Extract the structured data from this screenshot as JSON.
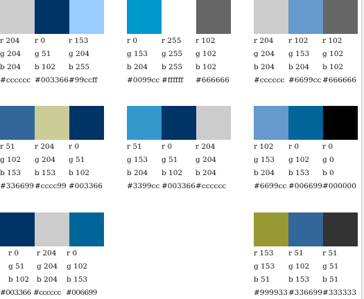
{
  "groups": [
    {
      "name": "row1-col1",
      "swatches": [
        {
          "r": "r 204",
          "g": "g 204",
          "b": "b 204",
          "hex": "#cccccc",
          "color": "#cccccc"
        },
        {
          "r": "r 0",
          "g": "g 51",
          "b": "b 102",
          "hex": "#003366",
          "color": "#003366"
        },
        {
          "r": "r 153",
          "g": "g 204",
          "b": "b 255",
          "hex": "#99ccff",
          "color": "#99ccff"
        }
      ]
    },
    {
      "name": "row1-col2",
      "swatches": [
        {
          "r": "r 0",
          "g": "g 153",
          "b": "b 204",
          "hex": "#0099cc",
          "color": "#0099cc"
        },
        {
          "r": "r 255",
          "g": "g 255",
          "b": "b 255",
          "hex": "#ffffff",
          "color": "#ffffff"
        },
        {
          "r": "r 102",
          "g": "g 102",
          "b": "b 102",
          "hex": "#666666",
          "color": "#666666"
        }
      ]
    },
    {
      "name": "row1-col3",
      "swatches": [
        {
          "r": "r 204",
          "g": "g 204",
          "b": "b 204",
          "hex": "#cccccc",
          "color": "#cccccc"
        },
        {
          "r": "r 102",
          "g": "g 153",
          "b": "b 204",
          "hex": "#6699cc",
          "color": "#6699cc"
        },
        {
          "r": "r 102",
          "g": "g 102",
          "b": "b 102",
          "hex": "#666666",
          "color": "#666666"
        }
      ]
    },
    {
      "name": "row2-col1",
      "swatches": [
        {
          "r": "r 51",
          "g": "g 102",
          "b": "b 153",
          "hex": "#336699",
          "color": "#336699"
        },
        {
          "r": "r 204",
          "g": "g 204",
          "b": "b 153",
          "hex": "#cccc99",
          "color": "#cccc99"
        },
        {
          "r": "r 0",
          "g": "g 51",
          "b": "b 102",
          "hex": "#003366",
          "color": "#003366"
        }
      ]
    },
    {
      "name": "row2-col2",
      "swatches": [
        {
          "r": "r 51",
          "g": "g 153",
          "b": "b 204",
          "hex": "#3399cc",
          "color": "#3399cc"
        },
        {
          "r": "r 0",
          "g": "g 51",
          "b": "b 102",
          "hex": "#003366",
          "color": "#003366"
        },
        {
          "r": "r 204",
          "g": "g 204",
          "b": "b 204",
          "hex": "#cccccc",
          "color": "#cccccc"
        }
      ]
    },
    {
      "name": "row2-col3",
      "swatches": [
        {
          "r": "r 102",
          "g": "g 153",
          "b": "b 204",
          "hex": "#6699cc",
          "color": "#6699cc"
        },
        {
          "r": "r 0",
          "g": "g 102",
          "b": "b 153",
          "hex": "#006699",
          "color": "#006699"
        },
        {
          "r": "r 0",
          "g": "g 0",
          "b": "b 0",
          "hex": "#000000",
          "color": "#000000"
        }
      ]
    },
    {
      "name": "row3-col1",
      "swatches": [
        {
          "r": "r 0",
          "g": "g 51",
          "b": "b 102",
          "hex": "#003366",
          "color": "#003366"
        },
        {
          "r": "r 204",
          "g": "g 204",
          "b": "b 204",
          "hex": "#cccccc",
          "color": "#cccccc"
        },
        {
          "r": "r 0",
          "g": "g 102",
          "b": "b 153",
          "hex": "#006699",
          "color": "#006699"
        }
      ]
    },
    {
      "name": "row3-col3",
      "swatches": [
        {
          "r": "r 153",
          "g": "g 153",
          "b": "b 51",
          "hex": "#999933",
          "color": "#999933"
        },
        {
          "r": "r 51",
          "g": "g 102",
          "b": "b 153",
          "hex": "#336699",
          "color": "#336699"
        },
        {
          "r": "r 51",
          "g": "g 51",
          "b": "b 51",
          "hex": "#333333",
          "color": "#333333"
        }
      ]
    }
  ]
}
